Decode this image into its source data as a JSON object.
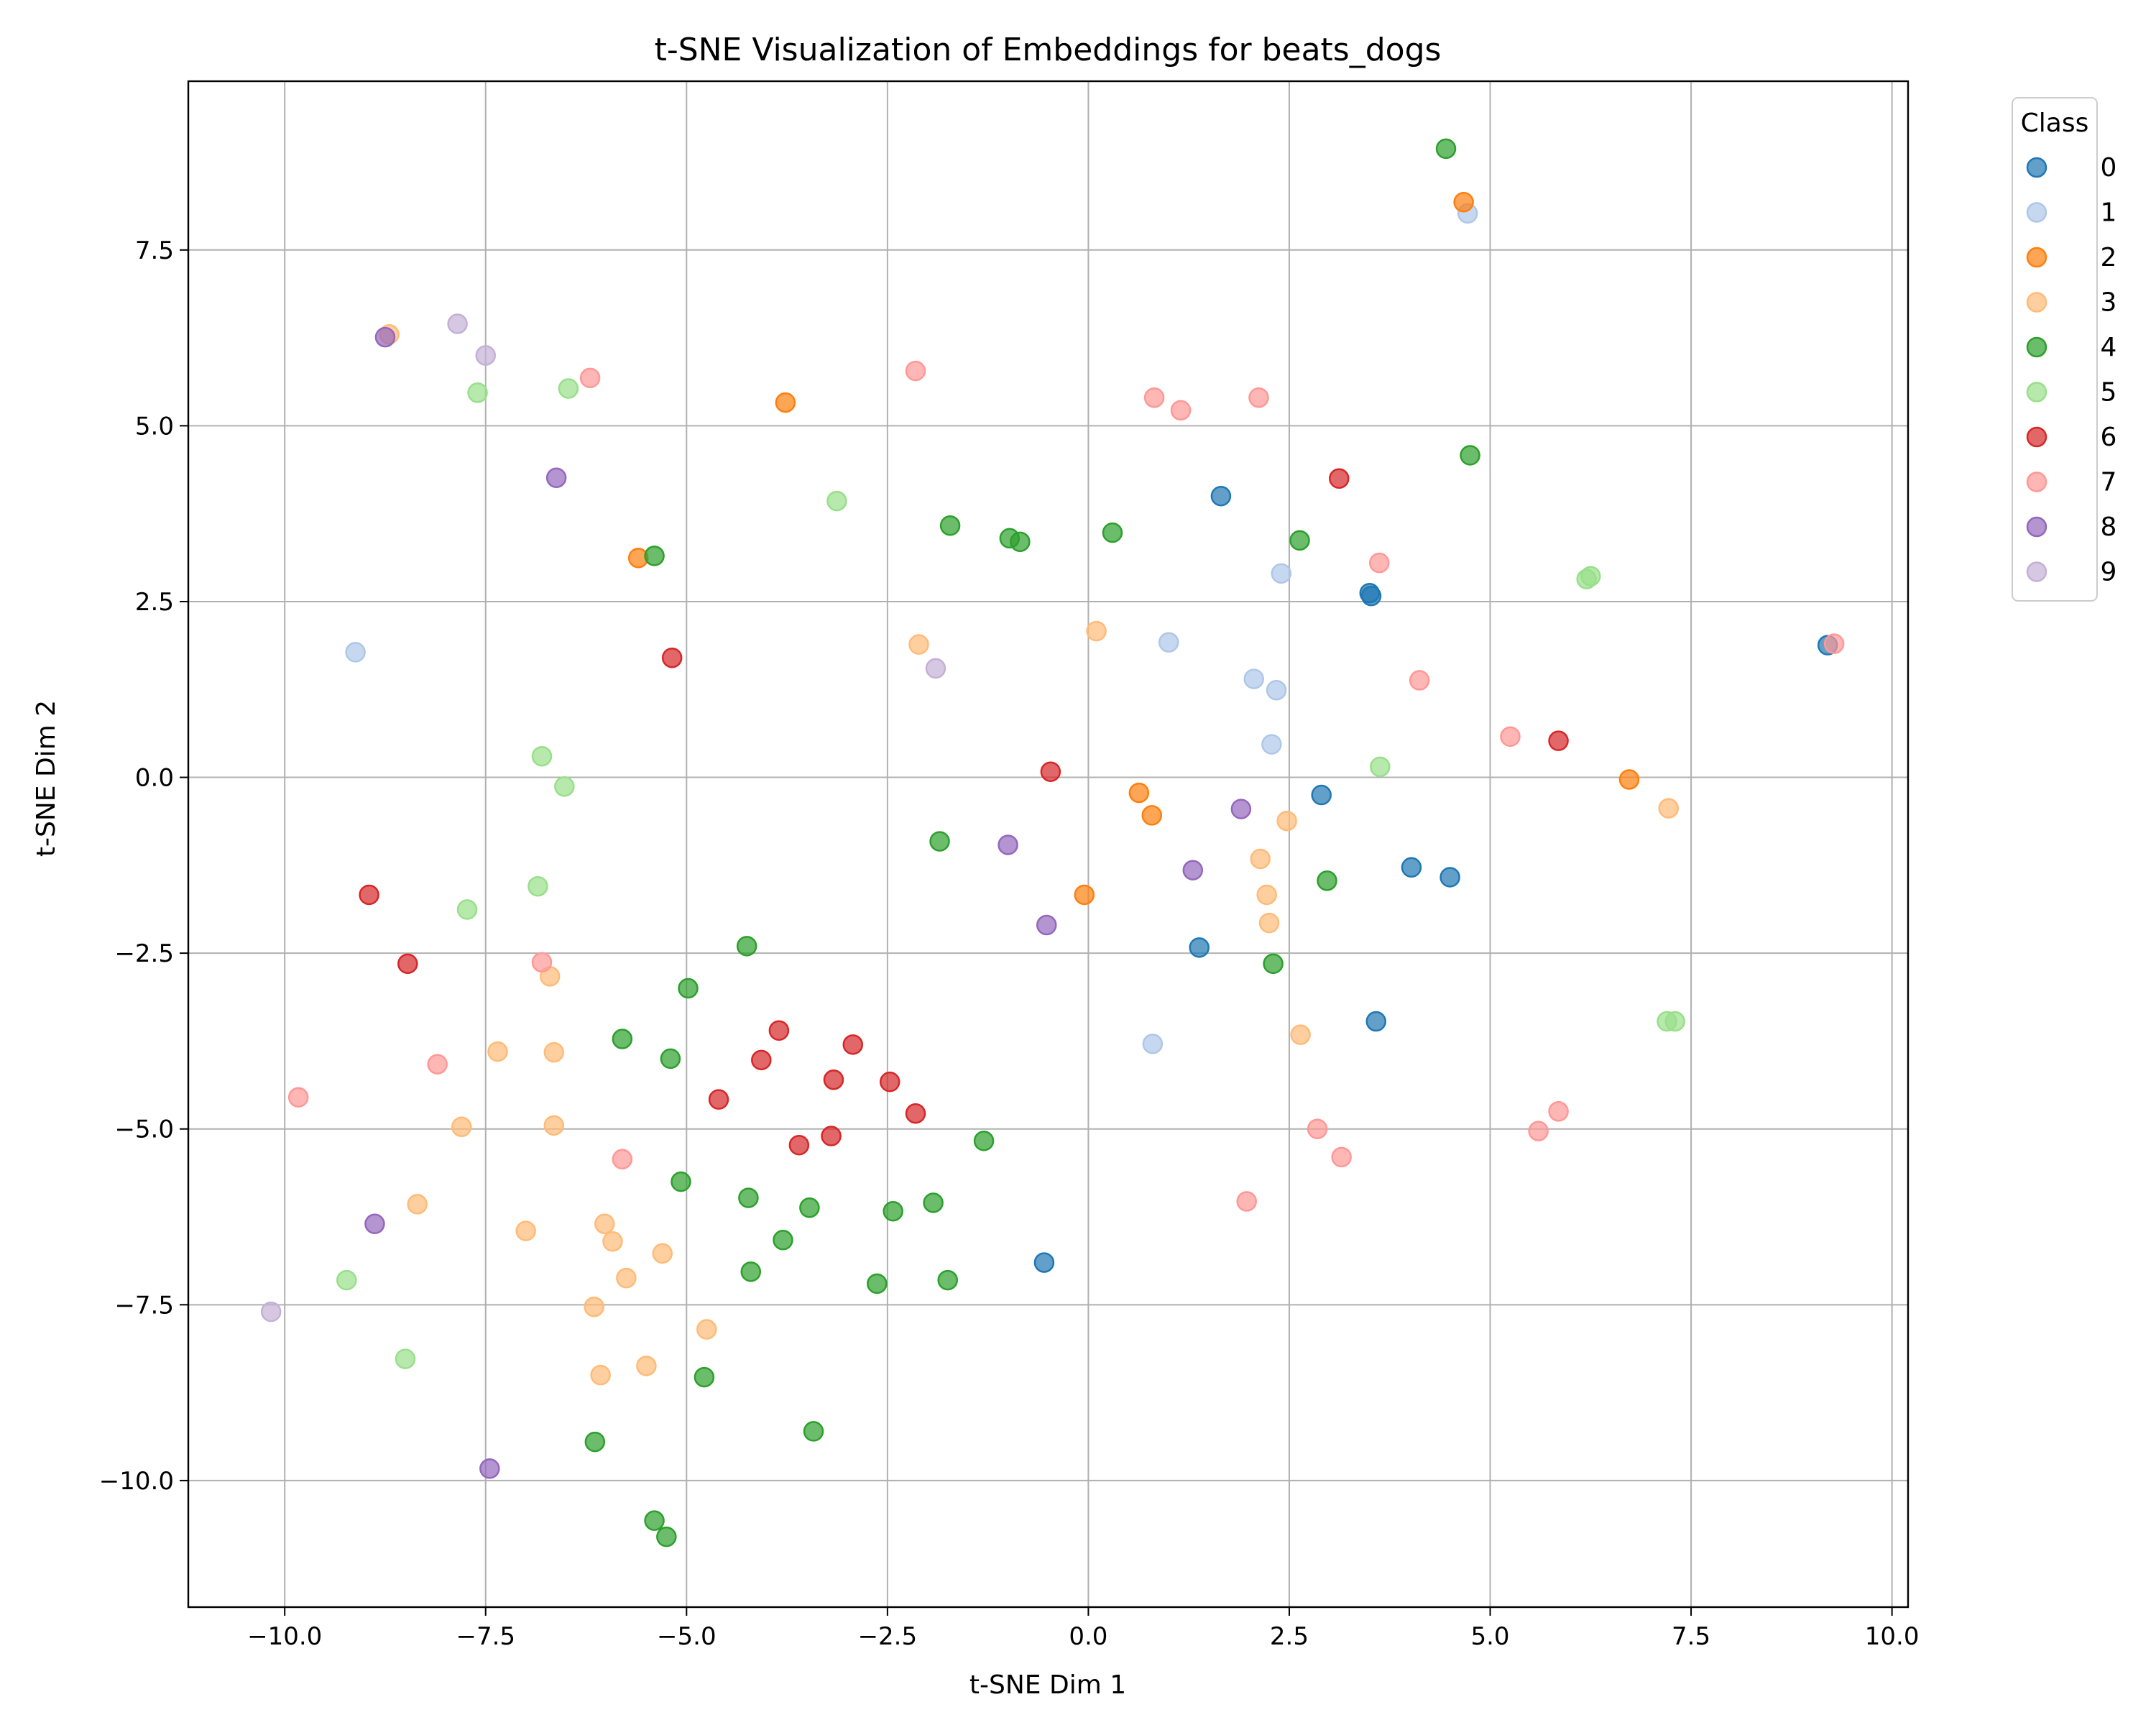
{
  "chart_data": {
    "type": "scatter",
    "title": "t-SNE Visualization of Embeddings for beats_dogs",
    "xlabel": "t-SNE Dim 1",
    "ylabel": "t-SNE Dim 2",
    "xlim": [
      -11.2,
      10.2
    ],
    "ylim": [
      -11.8,
      9.9
    ],
    "xticks": [
      -10.0,
      -7.5,
      -5.0,
      -2.5,
      0.0,
      2.5,
      5.0,
      7.5,
      10.0
    ],
    "xtick_labels": [
      "−10.0",
      "−7.5",
      "−5.0",
      "−2.5",
      "0.0",
      "2.5",
      "5.0",
      "7.5",
      "10.0"
    ],
    "yticks": [
      -10.0,
      -7.5,
      -5.0,
      -2.5,
      0.0,
      2.5,
      5.0,
      7.5
    ],
    "ytick_labels": [
      "−10.0",
      "−7.5",
      "−5.0",
      "−2.5",
      "0.0",
      "2.5",
      "5.0",
      "7.5"
    ],
    "grid": true,
    "legend_title": "Class",
    "legend_placement": "outside-top-right",
    "series": [
      {
        "name": "0",
        "color": "#1f77b4",
        "points": [
          [
            1.65,
            4.0
          ],
          [
            3.5,
            2.62
          ],
          [
            3.52,
            2.58
          ],
          [
            9.2,
            1.88
          ],
          [
            2.9,
            -0.25
          ],
          [
            4.02,
            -1.28
          ],
          [
            4.5,
            -1.42
          ],
          [
            1.38,
            -2.42
          ],
          [
            3.58,
            -3.47
          ],
          [
            -0.55,
            -6.9
          ]
        ]
      },
      {
        "name": "1",
        "color": "#aec7e8",
        "points": [
          [
            4.72,
            8.02
          ],
          [
            2.4,
            2.9
          ],
          [
            -9.12,
            1.78
          ],
          [
            1.0,
            1.92
          ],
          [
            2.06,
            1.4
          ],
          [
            2.34,
            1.24
          ],
          [
            2.28,
            0.47
          ],
          [
            0.8,
            -3.79
          ]
        ]
      },
      {
        "name": "2",
        "color": "#ff7f0e",
        "points": [
          [
            4.67,
            8.18
          ],
          [
            -3.77,
            5.33
          ],
          [
            -5.6,
            3.12
          ],
          [
            0.63,
            -0.22
          ],
          [
            0.79,
            -0.54
          ],
          [
            -0.05,
            -1.67
          ],
          [
            6.73,
            -0.03
          ]
        ]
      },
      {
        "name": "3",
        "color": "#ffbb78",
        "points": [
          [
            -8.7,
            6.3
          ],
          [
            -2.11,
            1.89
          ],
          [
            0.1,
            2.08
          ],
          [
            2.47,
            -0.62
          ],
          [
            7.22,
            -0.44
          ],
          [
            2.14,
            -1.16
          ],
          [
            2.22,
            -1.67
          ],
          [
            2.25,
            -2.07
          ],
          [
            2.64,
            -3.66
          ],
          [
            -6.7,
            -2.83
          ],
          [
            -7.35,
            -3.9
          ],
          [
            -6.65,
            -3.91
          ],
          [
            -7.8,
            -4.97
          ],
          [
            -6.65,
            -4.95
          ],
          [
            -8.35,
            -6.07
          ],
          [
            -7.0,
            -6.45
          ],
          [
            -6.02,
            -6.35
          ],
          [
            -5.92,
            -6.6
          ],
          [
            -5.3,
            -6.77
          ],
          [
            -5.75,
            -7.12
          ],
          [
            -6.15,
            -7.53
          ],
          [
            -4.75,
            -7.85
          ],
          [
            -6.07,
            -8.5
          ],
          [
            -5.5,
            -8.37
          ]
        ]
      },
      {
        "name": "4",
        "color": "#2ca02c",
        "points": [
          [
            4.45,
            8.94
          ],
          [
            4.75,
            4.58
          ],
          [
            -1.72,
            3.58
          ],
          [
            -0.98,
            3.4
          ],
          [
            -0.85,
            3.35
          ],
          [
            0.3,
            3.48
          ],
          [
            2.63,
            3.37
          ],
          [
            -5.4,
            3.15
          ],
          [
            -1.85,
            -0.91
          ],
          [
            2.97,
            -1.47
          ],
          [
            2.3,
            -2.65
          ],
          [
            -4.25,
            -2.4
          ],
          [
            -4.98,
            -3.0
          ],
          [
            -5.8,
            -3.72
          ],
          [
            -5.2,
            -4.0
          ],
          [
            -1.3,
            -5.17
          ],
          [
            -5.07,
            -5.75
          ],
          [
            -4.23,
            -5.98
          ],
          [
            -3.47,
            -6.12
          ],
          [
            -2.43,
            -6.17
          ],
          [
            -1.93,
            -6.05
          ],
          [
            -3.8,
            -6.58
          ],
          [
            -4.2,
            -7.03
          ],
          [
            -2.63,
            -7.2
          ],
          [
            -1.75,
            -7.15
          ],
          [
            -4.78,
            -8.53
          ],
          [
            -3.42,
            -9.3
          ],
          [
            -6.14,
            -9.45
          ],
          [
            -5.4,
            -10.57
          ],
          [
            -5.25,
            -10.8
          ]
        ]
      },
      {
        "name": "5",
        "color": "#98df8a",
        "points": [
          [
            -7.6,
            5.47
          ],
          [
            -6.47,
            5.53
          ],
          [
            -3.13,
            3.93
          ],
          [
            6.2,
            2.82
          ],
          [
            6.25,
            2.86
          ],
          [
            3.63,
            0.15
          ],
          [
            -6.8,
            0.3
          ],
          [
            -6.52,
            -0.13
          ],
          [
            -6.85,
            -1.55
          ],
          [
            -7.73,
            -1.88
          ],
          [
            7.2,
            -3.47
          ],
          [
            7.3,
            -3.47
          ],
          [
            -9.23,
            -7.15
          ],
          [
            -8.5,
            -8.27
          ]
        ]
      },
      {
        "name": "6",
        "color": "#d62728",
        "points": [
          [
            3.12,
            4.25
          ],
          [
            -5.18,
            1.7
          ],
          [
            -0.47,
            0.08
          ],
          [
            5.85,
            0.52
          ],
          [
            -8.95,
            -1.67
          ],
          [
            -8.47,
            -2.65
          ],
          [
            -3.85,
            -3.6
          ],
          [
            -2.93,
            -3.8
          ],
          [
            -4.07,
            -4.02
          ],
          [
            -3.17,
            -4.3
          ],
          [
            -2.47,
            -4.33
          ],
          [
            -4.6,
            -4.58
          ],
          [
            -2.15,
            -4.78
          ],
          [
            -3.6,
            -5.23
          ],
          [
            -3.2,
            -5.1
          ]
        ]
      },
      {
        "name": "7",
        "color": "#ff9896",
        "points": [
          [
            -6.2,
            5.68
          ],
          [
            -2.15,
            5.78
          ],
          [
            0.82,
            5.4
          ],
          [
            1.15,
            5.22
          ],
          [
            2.12,
            5.4
          ],
          [
            3.62,
            3.05
          ],
          [
            4.12,
            1.38
          ],
          [
            5.25,
            0.58
          ],
          [
            9.28,
            1.9
          ],
          [
            -6.8,
            -2.63
          ],
          [
            -8.1,
            -4.08
          ],
          [
            -9.83,
            -4.55
          ],
          [
            -5.8,
            -5.43
          ],
          [
            2.85,
            -5.0
          ],
          [
            3.15,
            -5.4
          ],
          [
            5.6,
            -5.03
          ],
          [
            5.85,
            -4.75
          ],
          [
            1.97,
            -6.03
          ]
        ]
      },
      {
        "name": "8",
        "color": "#9467bd",
        "points": [
          [
            -8.75,
            6.26
          ],
          [
            -6.62,
            4.26
          ],
          [
            -1.0,
            -0.96
          ],
          [
            1.9,
            -0.45
          ],
          [
            1.3,
            -1.32
          ],
          [
            -0.52,
            -2.1
          ],
          [
            -8.88,
            -6.35
          ],
          [
            -7.45,
            -9.83
          ]
        ]
      },
      {
        "name": "9",
        "color": "#c5b0d5",
        "points": [
          [
            -7.85,
            6.45
          ],
          [
            -7.5,
            6.0
          ],
          [
            -1.9,
            1.55
          ],
          [
            -10.17,
            -7.6
          ]
        ]
      }
    ]
  }
}
